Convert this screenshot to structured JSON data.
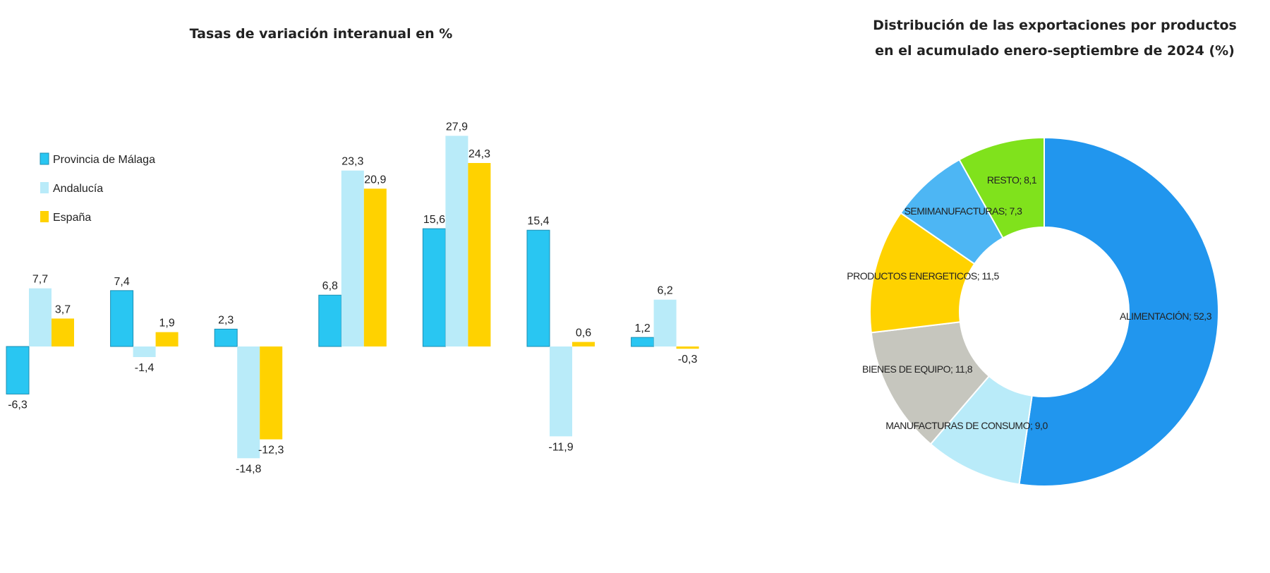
{
  "chart_data": [
    {
      "type": "bar",
      "title": "Tasas de variación interanual en %",
      "xlabel": "",
      "ylabel": "",
      "categories": [
        "",
        "",
        "",
        "",
        "",
        "",
        ""
      ],
      "series": [
        {
          "name": "Provincia de Málaga",
          "color": "#29c6f2",
          "values": [
            -6.3,
            7.4,
            2.3,
            6.8,
            15.6,
            15.4,
            1.2
          ],
          "labels": [
            "-6,3",
            "7,4",
            "2,3",
            "6,8",
            "15,6",
            "15,4",
            "1,2"
          ]
        },
        {
          "name": "Andalucía",
          "color": "#b9ebf9",
          "values": [
            7.7,
            -1.4,
            -14.8,
            23.3,
            27.9,
            -11.9,
            6.2
          ],
          "labels": [
            "7,7",
            "-1,4",
            "-14,8",
            "23,3",
            "27,9",
            "-11,9",
            "6,2"
          ]
        },
        {
          "name": "España",
          "color": "#ffd200",
          "values": [
            3.7,
            1.9,
            -12.3,
            20.9,
            24.3,
            0.6,
            -0.3
          ],
          "labels": [
            "3,7",
            "1,9",
            "-12,3",
            "20,9",
            "24,3",
            "0,6",
            "-0,3"
          ]
        }
      ],
      "legend": "left",
      "grid": false
    },
    {
      "type": "pie",
      "title_lines": [
        "Distribución de las exportaciones por productos",
        "en el acumulado enero-septiembre de 2024 (%)"
      ],
      "slices": [
        {
          "label": "ALIMENTACIÓN; 52,3",
          "value": 52.3,
          "color": "#2196ee"
        },
        {
          "label": "MANUFACTURAS DE CONSUMO; 9,0",
          "value": 9.0,
          "color": "#b9ebf9"
        },
        {
          "label": "BIENES DE EQUIPO; 11,8",
          "value": 11.8,
          "color": "#c6c6be"
        },
        {
          "label": "PRODUCTOS ENERGETICOS; 11,5",
          "value": 11.5,
          "color": "#ffd200"
        },
        {
          "label": "SEMIMANUFACTURAS; 7,3",
          "value": 7.3,
          "color": "#4db6f4"
        },
        {
          "label": "RESTO; 8,1",
          "value": 8.1,
          "color": "#80e21c"
        }
      ]
    }
  ]
}
